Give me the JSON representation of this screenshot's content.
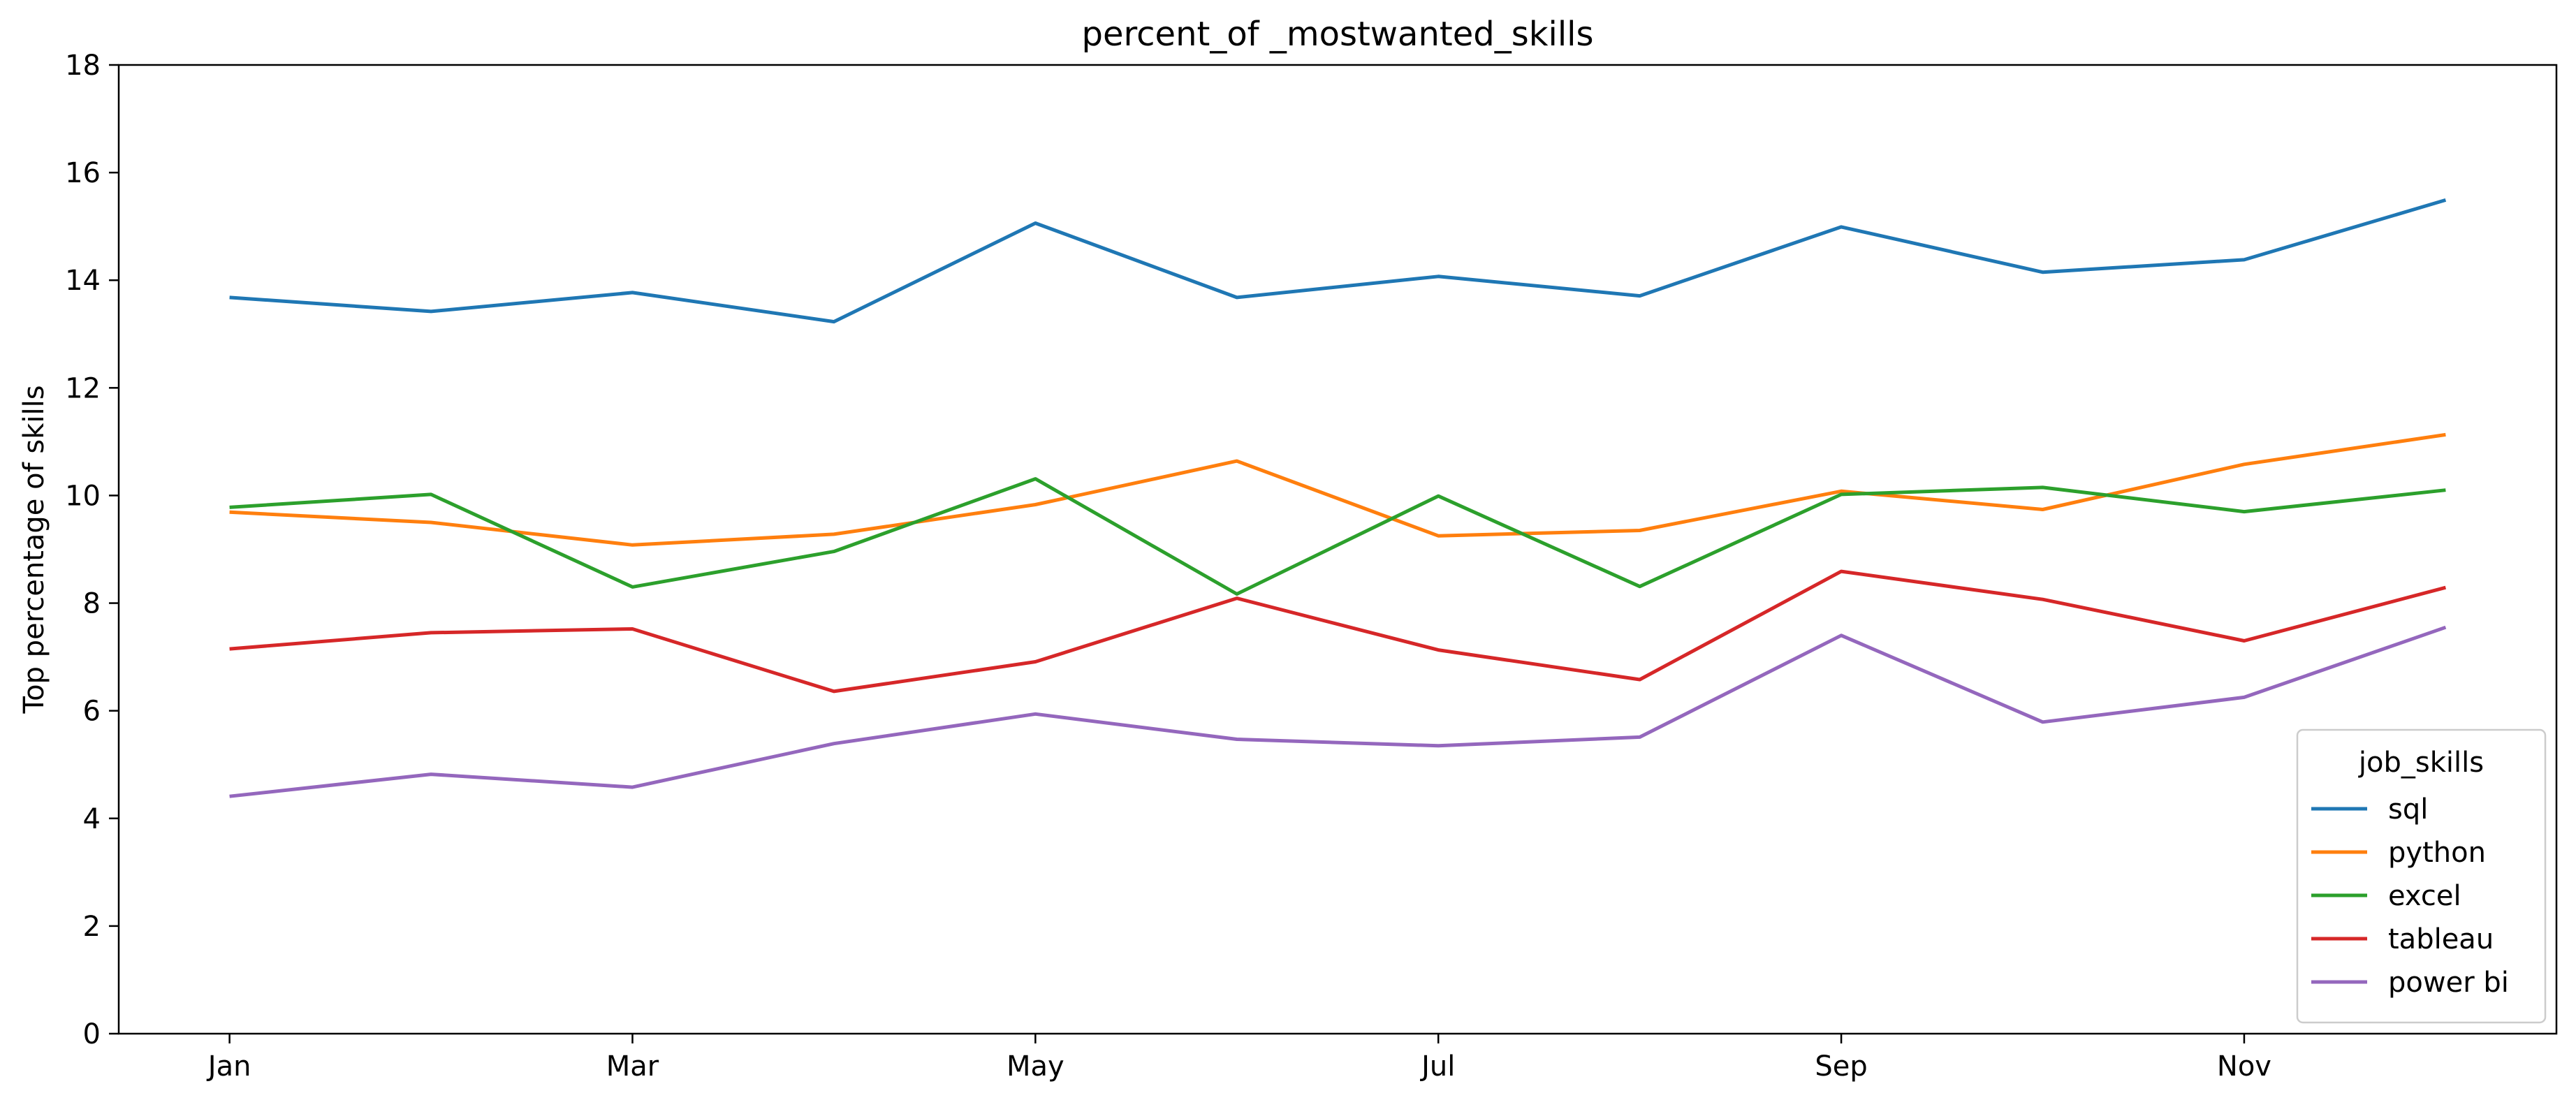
{
  "chart_data": {
    "type": "line",
    "title": "percent_of _mostwanted_skills",
    "xlabel": "",
    "ylabel": "Top percentage of skills",
    "x": [
      1,
      2,
      3,
      4,
      5,
      6,
      7,
      8,
      9,
      10,
      11,
      12
    ],
    "xlim": [
      0.45,
      12.55
    ],
    "x_ticks": [
      {
        "value": 1,
        "label": "Jan"
      },
      {
        "value": 3,
        "label": "Mar"
      },
      {
        "value": 5,
        "label": "May"
      },
      {
        "value": 7,
        "label": "Jul"
      },
      {
        "value": 9,
        "label": "Sep"
      },
      {
        "value": 11,
        "label": "Nov"
      }
    ],
    "ylim": [
      0,
      18
    ],
    "y_ticks": [
      0,
      2,
      4,
      6,
      8,
      10,
      12,
      14,
      16,
      18
    ],
    "grid": false,
    "legend": {
      "title": "job_skills",
      "placement": "lower-right"
    },
    "series": [
      {
        "name": "sql",
        "color": "#1f77b4",
        "values": [
          13.68,
          13.42,
          13.77,
          13.23,
          15.06,
          13.68,
          14.07,
          13.71,
          14.99,
          14.15,
          14.38,
          15.49
        ]
      },
      {
        "name": "python",
        "color": "#ff7f0e",
        "values": [
          9.69,
          9.5,
          9.08,
          9.28,
          9.83,
          10.64,
          9.25,
          9.35,
          10.08,
          9.74,
          10.58,
          11.13
        ]
      },
      {
        "name": "excel",
        "color": "#2ca02c",
        "values": [
          9.78,
          10.02,
          8.3,
          8.96,
          10.31,
          8.17,
          9.99,
          8.31,
          10.02,
          10.15,
          9.7,
          10.1
        ]
      },
      {
        "name": "tableau",
        "color": "#d62728",
        "values": [
          7.15,
          7.45,
          7.52,
          6.36,
          6.91,
          8.09,
          7.13,
          6.58,
          8.59,
          8.07,
          7.3,
          8.29
        ]
      },
      {
        "name": "power bi",
        "color": "#9467bd",
        "values": [
          4.41,
          4.82,
          4.58,
          5.39,
          5.94,
          5.47,
          5.35,
          5.51,
          7.4,
          5.79,
          6.25,
          7.55
        ]
      }
    ]
  }
}
